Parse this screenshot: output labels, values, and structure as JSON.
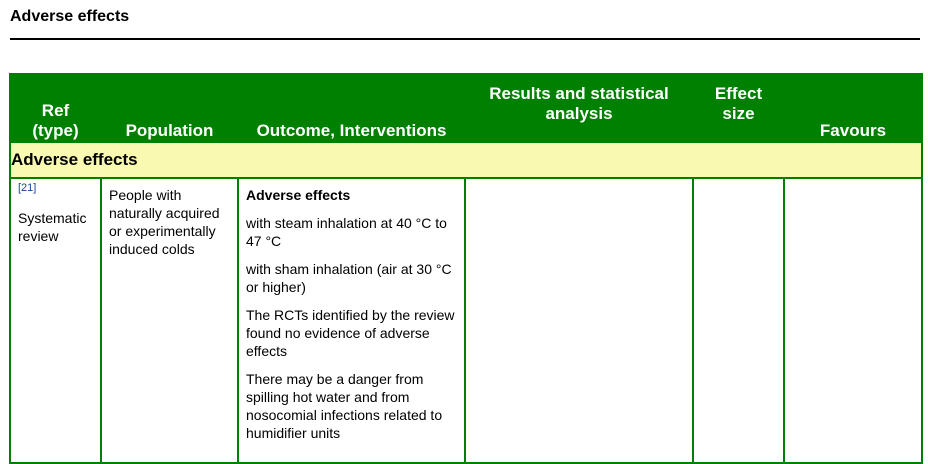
{
  "page": {
    "title": "Adverse effects"
  },
  "table": {
    "headers": {
      "ref_line1": "Ref",
      "ref_line2": "(type)",
      "population": "Population",
      "outcome": "Outcome, Interventions",
      "results_line1": "Results and statistical",
      "results_line2": "analysis",
      "effect_line1": "Effect",
      "effect_line2": "size",
      "favours": "Favours"
    },
    "section_label": "Adverse effects",
    "row": {
      "ref_link": "[21]",
      "ref_type": "Systematic review",
      "population": "People with naturally acquired or experimentally induced colds",
      "outcome_heading": "Adverse effects",
      "outcome_items": [
        "with steam inhalation at 40 °C to 47 °C",
        "with sham inhalation (air at 30 °C or higher)",
        "The RCTs identified by the review found no evidence of adverse effects",
        "There may be a danger from spilling hot water and from nosocomial infections related to humidifier units"
      ],
      "results": "",
      "effect_size": "",
      "favours": ""
    }
  }
}
